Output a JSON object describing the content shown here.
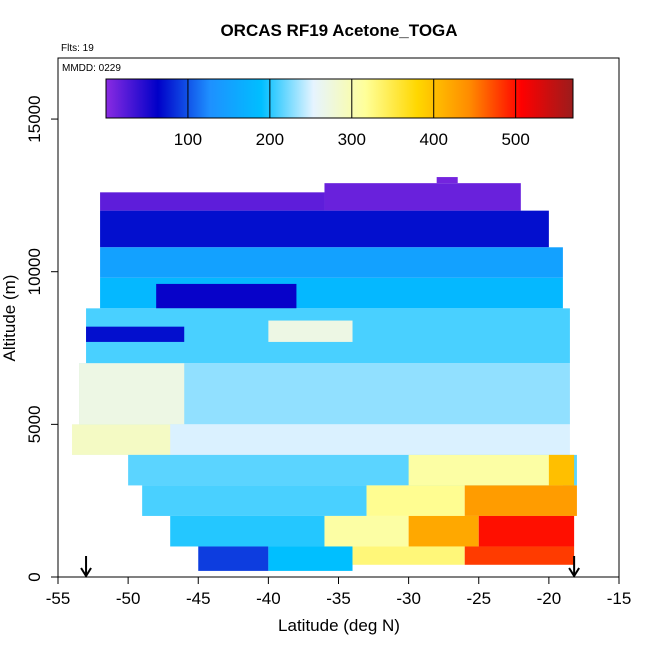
{
  "chart_data": {
    "type": "heatmap",
    "title": "ORCAS RF19 Acetone_TOGA",
    "flights_label": "Flts: 19",
    "date_label": "MMDD: 0229",
    "xlabel": "Latitude (deg N)",
    "ylabel": "Altitude (m)",
    "xlim": [
      -55,
      -15
    ],
    "ylim": [
      0,
      17000
    ],
    "x_ticks": [
      -55,
      -50,
      -45,
      -40,
      -35,
      -30,
      -25,
      -20,
      -15
    ],
    "x_tick_labels": [
      "-55",
      "-50",
      "-45",
      "-40",
      "-35",
      "-30",
      "-25",
      "-20",
      "-15"
    ],
    "y_ticks": [
      0,
      5000,
      10000,
      15000
    ],
    "y_tick_labels": [
      "0",
      "5000",
      "10000",
      "15000"
    ],
    "colorbar": {
      "range": [
        0,
        570
      ],
      "ticks": [
        100,
        200,
        300,
        400,
        500
      ],
      "tick_labels": [
        "100",
        "200",
        "300",
        "400",
        "500"
      ],
      "colors": [
        "#8a2be2",
        "#0000c8",
        "#1e90ff",
        "#00bfff",
        "#e6f4ff",
        "#ffff99",
        "#ffd700",
        "#ff8c00",
        "#ff0000",
        "#9b1c1c"
      ]
    },
    "markers": [
      -53,
      -18.2
    ],
    "regions": [
      {
        "lat": [
          -52,
          -36
        ],
        "alt": [
          12000,
          12600
        ],
        "value": 20
      },
      {
        "lat": [
          -36,
          -22
        ],
        "alt": [
          12000,
          12900
        ],
        "value": 15
      },
      {
        "lat": [
          -28,
          -26.5
        ],
        "alt": [
          12900,
          13100
        ],
        "value": 10
      },
      {
        "lat": [
          -52,
          -20
        ],
        "alt": [
          10800,
          12000
        ],
        "value": 70
      },
      {
        "lat": [
          -52,
          -19
        ],
        "alt": [
          9800,
          10800
        ],
        "value": 150
      },
      {
        "lat": [
          -52,
          -19
        ],
        "alt": [
          8800,
          9800
        ],
        "value": 180
      },
      {
        "lat": [
          -48,
          -38
        ],
        "alt": [
          8800,
          9600
        ],
        "value": 60
      },
      {
        "lat": [
          -53,
          -18.5
        ],
        "alt": [
          7000,
          8800
        ],
        "value": 210
      },
      {
        "lat": [
          -53,
          -46
        ],
        "alt": [
          7700,
          8200
        ],
        "value": 70
      },
      {
        "lat": [
          -40,
          -34
        ],
        "alt": [
          7700,
          8400
        ],
        "value": 270
      },
      {
        "lat": [
          -53.5,
          -18.5
        ],
        "alt": [
          5000,
          7000
        ],
        "value": 230
      },
      {
        "lat": [
          -53.5,
          -46
        ],
        "alt": [
          5000,
          7000
        ],
        "value": 270
      },
      {
        "lat": [
          -54,
          -18.5
        ],
        "alt": [
          4000,
          5000
        ],
        "value": 250
      },
      {
        "lat": [
          -54,
          -47
        ],
        "alt": [
          4000,
          5000
        ],
        "value": 290
      },
      {
        "lat": [
          -50,
          -18
        ],
        "alt": [
          3000,
          4000
        ],
        "value": 215
      },
      {
        "lat": [
          -30,
          -19
        ],
        "alt": [
          3000,
          4000
        ],
        "value": 310
      },
      {
        "lat": [
          -20,
          -18.2
        ],
        "alt": [
          3000,
          4000
        ],
        "value": 400
      },
      {
        "lat": [
          -49,
          -33
        ],
        "alt": [
          2000,
          3000
        ],
        "value": 210
      },
      {
        "lat": [
          -33,
          -26
        ],
        "alt": [
          2000,
          3000
        ],
        "value": 320
      },
      {
        "lat": [
          -26,
          -18
        ],
        "alt": [
          2000,
          3000
        ],
        "value": 430
      },
      {
        "lat": [
          -47,
          -36
        ],
        "alt": [
          1000,
          2000
        ],
        "value": 200
      },
      {
        "lat": [
          -36,
          -30
        ],
        "alt": [
          1000,
          2000
        ],
        "value": 310
      },
      {
        "lat": [
          -30,
          -25
        ],
        "alt": [
          1000,
          2000
        ],
        "value": 420
      },
      {
        "lat": [
          -25,
          -18.2
        ],
        "alt": [
          1000,
          2000
        ],
        "value": 500
      },
      {
        "lat": [
          -45,
          -40
        ],
        "alt": [
          200,
          1000
        ],
        "value": 90
      },
      {
        "lat": [
          -40,
          -34
        ],
        "alt": [
          200,
          1000
        ],
        "value": 190
      },
      {
        "lat": [
          -34,
          -26
        ],
        "alt": [
          400,
          1000
        ],
        "value": 330
      },
      {
        "lat": [
          -26,
          -18.2
        ],
        "alt": [
          400,
          1000
        ],
        "value": 480
      }
    ]
  }
}
